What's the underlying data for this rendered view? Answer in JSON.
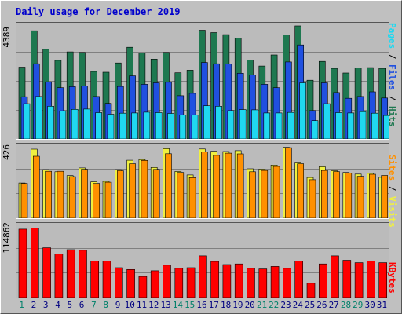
{
  "title": "Daily usage for December 2019",
  "colors": {
    "hits": "#1e7850",
    "files": "#2050e0",
    "pages": "#20d8f0",
    "visits": "#f0f040",
    "sites": "#ff9000",
    "kbytes": "#ff0000",
    "weekend_label": "#00806a",
    "weekday_label": "#000080"
  },
  "legend": {
    "pages": "Pages",
    "files": "Files",
    "hits": "Hits",
    "sites": "Sites",
    "visits": "Visits",
    "kbytes": "KBytes",
    "sep": " / "
  },
  "chart_data": [
    {
      "type": "bar",
      "name": "hits-files-pages",
      "ymax_label": "4389",
      "ymax": 4389,
      "categories": [
        "1",
        "2",
        "3",
        "4",
        "5",
        "6",
        "7",
        "8",
        "9",
        "10",
        "11",
        "12",
        "13",
        "14",
        "15",
        "16",
        "17",
        "18",
        "19",
        "20",
        "21",
        "22",
        "23",
        "24",
        "25",
        "26",
        "27",
        "28",
        "29",
        "30",
        "31"
      ],
      "series": [
        {
          "name": "Hits",
          "values": [
            2790,
            4200,
            3480,
            3050,
            3380,
            3360,
            2620,
            2590,
            2950,
            3560,
            3330,
            3100,
            3360,
            2570,
            2670,
            4220,
            4130,
            4050,
            3920,
            3070,
            2830,
            3260,
            4040,
            4390,
            2280,
            3010,
            2740,
            2560,
            2760,
            2770,
            2740
          ]
        },
        {
          "name": "Files",
          "values": [
            1640,
            2920,
            2220,
            1990,
            2030,
            2050,
            1650,
            1380,
            2040,
            2450,
            2120,
            2180,
            2200,
            1680,
            1770,
            2970,
            2920,
            2910,
            2550,
            2490,
            2120,
            1990,
            2990,
            3650,
            1100,
            2180,
            1800,
            1580,
            1650,
            1830,
            1590
          ]
        },
        {
          "name": "Pages",
          "values": [
            1370,
            1650,
            1270,
            1090,
            1150,
            1160,
            1020,
            960,
            1000,
            1010,
            1040,
            1020,
            990,
            930,
            930,
            1290,
            1270,
            1100,
            1140,
            1130,
            1010,
            1010,
            1030,
            2180,
            710,
            1370,
            1020,
            1010,
            1060,
            1000,
            910
          ]
        }
      ]
    },
    {
      "type": "bar",
      "name": "visits-sites",
      "ymax_label": "426",
      "ymax": 426,
      "categories": [
        "1",
        "2",
        "3",
        "4",
        "5",
        "6",
        "7",
        "8",
        "9",
        "10",
        "11",
        "12",
        "13",
        "14",
        "15",
        "16",
        "17",
        "18",
        "19",
        "20",
        "21",
        "22",
        "23",
        "24",
        "25",
        "26",
        "27",
        "28",
        "29",
        "30",
        "31"
      ],
      "series": [
        {
          "name": "Visits",
          "values": [
            210,
            412,
            290,
            277,
            254,
            300,
            217,
            220,
            290,
            346,
            350,
            303,
            415,
            279,
            258,
            413,
            400,
            398,
            403,
            295,
            293,
            317,
            423,
            330,
            243,
            307,
            283,
            273,
            263,
            268,
            244
          ]
        },
        {
          "name": "Sites",
          "values": [
            208,
            370,
            280,
            280,
            248,
            292,
            208,
            215,
            283,
            325,
            345,
            291,
            385,
            273,
            242,
            395,
            375,
            388,
            384,
            277,
            285,
            309,
            421,
            325,
            230,
            285,
            278,
            270,
            250,
            262,
            255
          ]
        }
      ]
    },
    {
      "type": "bar",
      "name": "kbytes",
      "ymax_label": "114862",
      "ymax": 114862,
      "categories": [
        "1",
        "2",
        "3",
        "4",
        "5",
        "6",
        "7",
        "8",
        "9",
        "10",
        "11",
        "12",
        "13",
        "14",
        "15",
        "16",
        "17",
        "18",
        "19",
        "20",
        "21",
        "22",
        "23",
        "24",
        "25",
        "26",
        "27",
        "28",
        "29",
        "30",
        "31"
      ],
      "series": [
        {
          "name": "KBytes",
          "values": [
            110000,
            112000,
            80000,
            70000,
            77000,
            76000,
            59000,
            59000,
            48000,
            45000,
            34000,
            43000,
            52000,
            47000,
            48000,
            67000,
            58000,
            53000,
            54000,
            47000,
            46000,
            50000,
            47000,
            59000,
            23000,
            54000,
            67000,
            60000,
            56000,
            59000,
            56000
          ]
        }
      ]
    }
  ]
}
